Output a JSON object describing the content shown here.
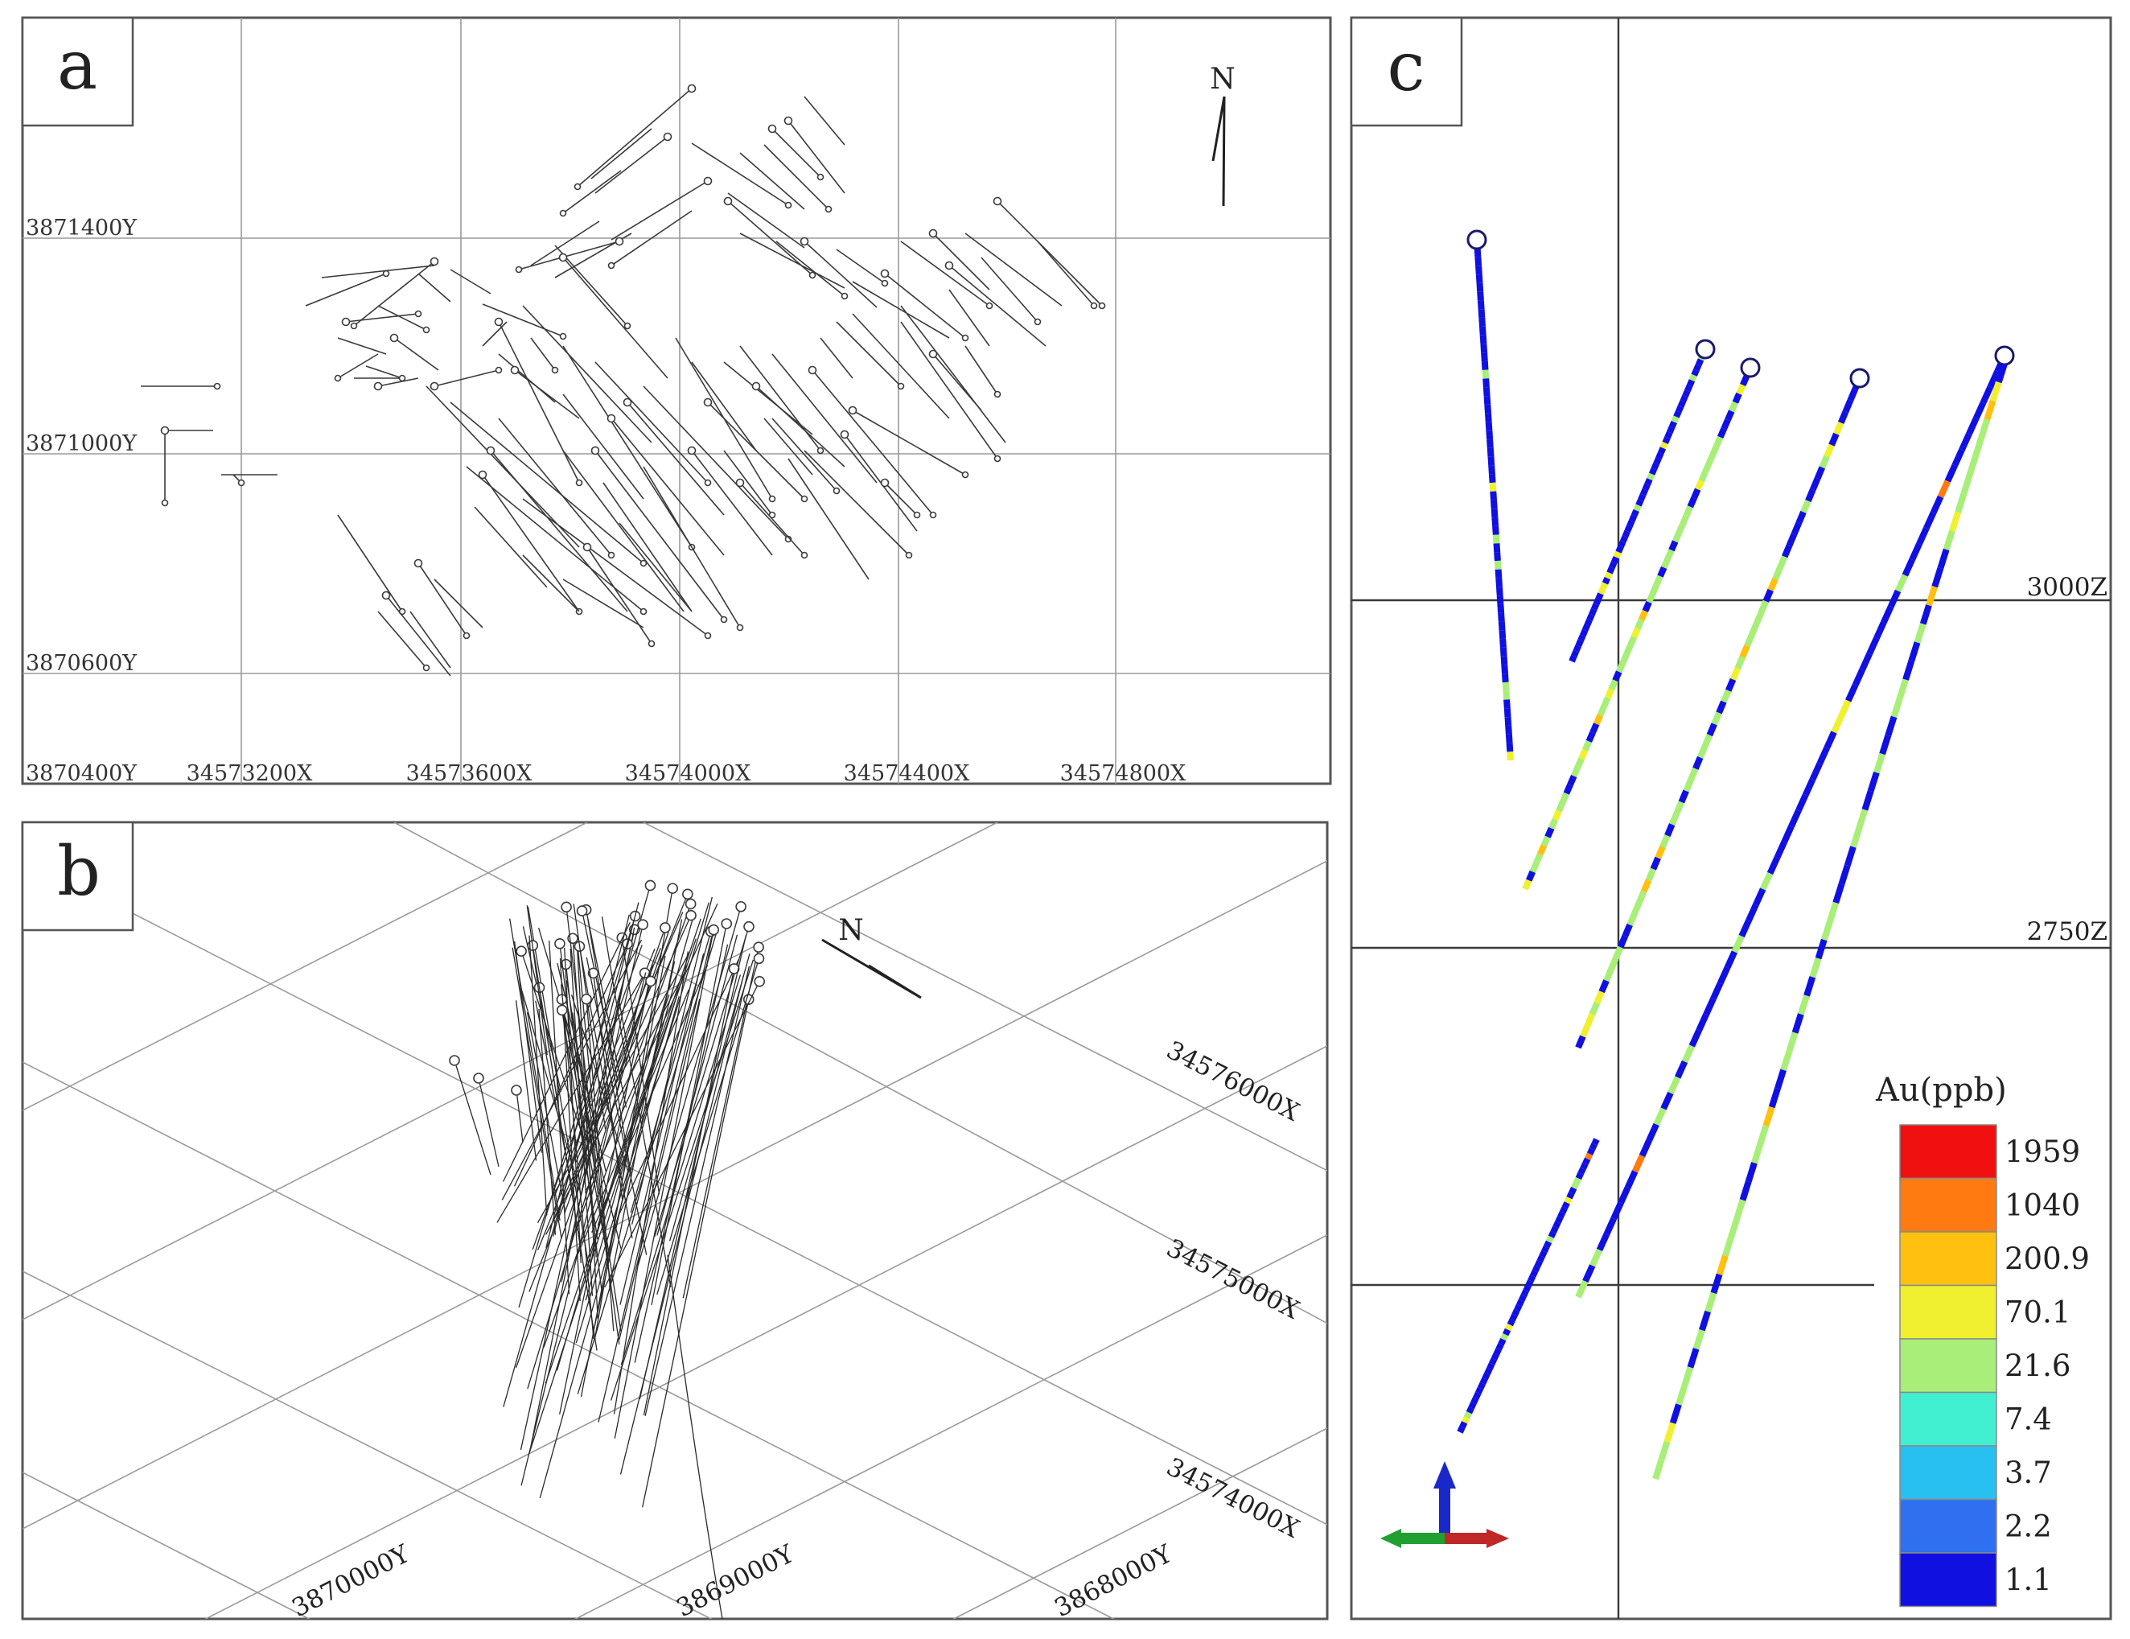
{
  "panels": {
    "a": {
      "letter": "a",
      "north": "N",
      "y_labels": [
        "3871400Y",
        "3871000Y",
        "3870600Y",
        "3870400Y"
      ],
      "x_labels": [
        "34573200X",
        "34573600X",
        "34574000X",
        "34574400X",
        "34574800X"
      ]
    },
    "b": {
      "letter": "b",
      "north": "N",
      "x_labels": [
        "34576000X",
        "34575000X",
        "34574000X"
      ],
      "y_labels": [
        "3870000Y",
        "3869000Y",
        "3868000Y"
      ]
    },
    "c": {
      "letter": "c",
      "z_labels": [
        "3000Z",
        "2750Z"
      ],
      "legend": {
        "title": "Au(ppb)",
        "entries": [
          {
            "label": "1959",
            "color": "#f01010"
          },
          {
            "label": "1040",
            "color": "#ff7a10"
          },
          {
            "label": "200.9",
            "color": "#ffc010"
          },
          {
            "label": "70.1",
            "color": "#f0f030"
          },
          {
            "label": "21.6",
            "color": "#a8ee78"
          },
          {
            "label": "7.4",
            "color": "#40f0d0"
          },
          {
            "label": "3.7",
            "color": "#28c0f0"
          },
          {
            "label": "2.2",
            "color": "#3070f0"
          },
          {
            "label": "1.1",
            "color": "#1010e0"
          }
        ]
      },
      "axis_colors": {
        "up": "#1a28c8",
        "left": "#20a030",
        "right": "#c02828"
      }
    }
  }
}
